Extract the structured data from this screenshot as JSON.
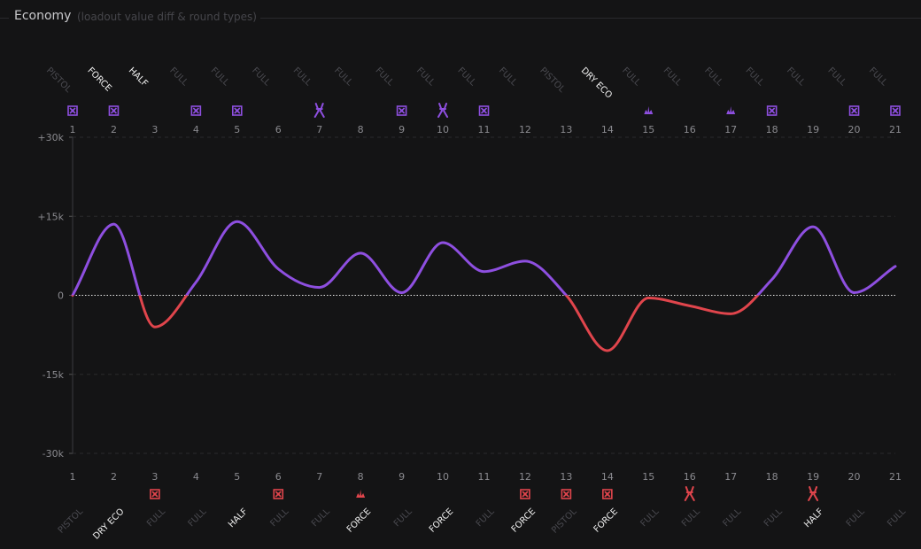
{
  "section": {
    "title": "Economy",
    "subtitle": "(loadout value diff & round types)"
  },
  "colors": {
    "team_top": "#8e4fe0",
    "team_bottom": "#e0454c",
    "grid": "#2a2a2d",
    "muted_label": "#4a4a50",
    "bright_label": "#f2f2f2"
  },
  "chart_data": {
    "type": "line",
    "title": "Economy",
    "subtitle": "(loadout value diff & round types)",
    "xlabel": "",
    "ylabel": "",
    "ylim": [
      -30000,
      30000
    ],
    "yticks": [
      30000,
      15000,
      0,
      -15000,
      -30000
    ],
    "ytick_labels": [
      "+30k",
      "+15k",
      "0",
      "-15k",
      "-30k"
    ],
    "rounds": [
      1,
      2,
      3,
      4,
      5,
      6,
      7,
      8,
      9,
      10,
      11,
      12,
      13,
      14,
      15,
      16,
      17,
      18,
      19,
      20,
      21
    ],
    "round_labels": [
      "1",
      "2",
      "3",
      "4",
      "5",
      "6",
      "7",
      "8",
      "9",
      "10",
      "11",
      "12",
      "13",
      "14",
      "15",
      "16",
      "17",
      "18",
      "19",
      "20",
      "21"
    ],
    "values": [
      0,
      13500,
      -6000,
      2500,
      14000,
      5000,
      1500,
      8000,
      500,
      10000,
      4500,
      6500,
      0,
      -10500,
      -500,
      -2000,
      -3500,
      3000,
      13000,
      500,
      5500
    ],
    "series": [
      {
        "name": "loadout value diff",
        "values": [
          0,
          13500,
          -6000,
          2500,
          14000,
          5000,
          1500,
          8000,
          500,
          10000,
          4500,
          6500,
          0,
          -10500,
          -500,
          -2000,
          -3500,
          3000,
          13000,
          500,
          5500
        ]
      }
    ],
    "top_types": [
      "PISTOL",
      "FORCE",
      "HALF",
      "FULL",
      "FULL",
      "FULL",
      "FULL",
      "FULL",
      "FULL",
      "FULL",
      "FULL",
      "FULL",
      "PISTOL",
      "DRY ECO",
      "FULL",
      "FULL",
      "FULL",
      "FULL",
      "FULL",
      "FULL",
      "FULL"
    ],
    "bottom_types": [
      "PISTOL",
      "DRY ECO",
      "FULL",
      "FULL",
      "HALF",
      "FULL",
      "FULL",
      "FORCE",
      "FULL",
      "FORCE",
      "FULL",
      "FORCE",
      "PISTOL",
      "FORCE",
      "FULL",
      "FULL",
      "FULL",
      "FULL",
      "HALF",
      "FULL",
      "FULL"
    ],
    "top_win_icons": [
      "elim-icon",
      "elim-icon",
      "",
      "elim-icon",
      "elim-icon",
      "",
      "defuse-icon",
      "",
      "elim-icon",
      "defuse-icon",
      "elim-icon",
      "",
      "",
      "",
      "detonate-icon",
      "",
      "detonate-icon",
      "elim-icon",
      "",
      "elim-icon",
      "elim-icon"
    ],
    "bottom_win_icons": [
      "",
      "",
      "elim-icon",
      "",
      "",
      "elim-icon",
      "",
      "detonate-icon",
      "",
      "",
      "",
      "elim-icon",
      "elim-icon",
      "elim-icon",
      "",
      "defuse-icon",
      "",
      "",
      "defuse-icon",
      "",
      ""
    ]
  }
}
